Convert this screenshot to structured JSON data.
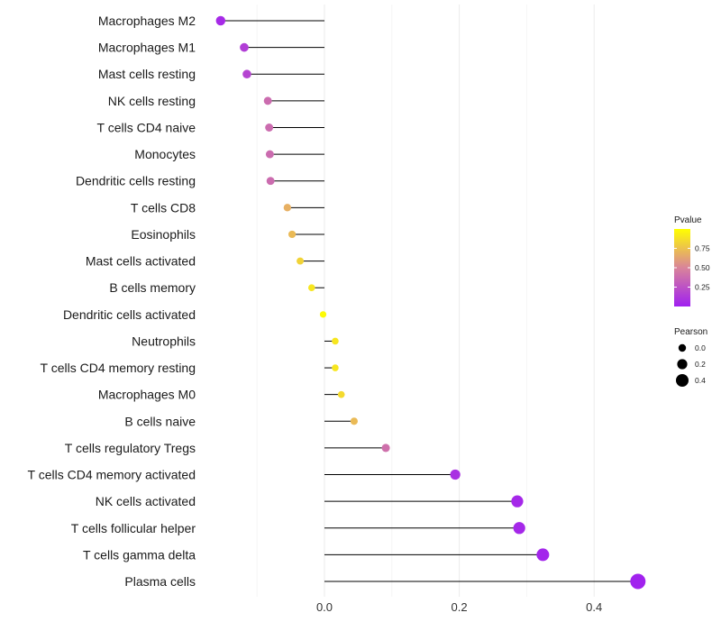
{
  "chart_data": {
    "type": "lollipop",
    "title": "",
    "xlabel": "",
    "ylabel": "",
    "xlim": [
      -0.1,
      0.47
    ],
    "xticks": [
      0.0,
      0.2,
      0.4
    ],
    "xtick_labels": [
      "0.0",
      "0.2",
      "0.4"
    ],
    "categories": [
      "Macrophages M2",
      "Macrophages M1",
      "Mast cells resting",
      "NK cells resting",
      "T cells CD4 naive",
      "Monocytes",
      "Dendritic cells resting",
      "T cells CD8",
      "Eosinophils",
      "Mast cells activated",
      "B cells memory",
      "Dendritic cells activated",
      "Neutrophils",
      "T cells CD4 memory resting",
      "Macrophages M0",
      "B cells naive",
      "T cells regulatory  Tregs",
      "T cells CD4 memory activated",
      "NK cells activated",
      "T cells follicular helper",
      "T cells gamma delta",
      "Plasma cells"
    ],
    "pearson": [
      -0.154,
      -0.119,
      -0.115,
      -0.084,
      -0.082,
      -0.081,
      -0.08,
      -0.055,
      -0.048,
      -0.036,
      -0.019,
      -0.002,
      0.016,
      0.016,
      0.025,
      0.044,
      0.091,
      0.194,
      0.286,
      0.289,
      0.324,
      0.465
    ],
    "pvalue": [
      0.05,
      0.15,
      0.18,
      0.38,
      0.38,
      0.38,
      0.38,
      0.68,
      0.72,
      0.82,
      0.9,
      0.98,
      0.9,
      0.9,
      0.85,
      0.72,
      0.4,
      0.08,
      0.04,
      0.04,
      0.03,
      0.01
    ],
    "color_scale": {
      "low": "#A020F0",
      "mid": "#D9849A",
      "high": "#FFFF00"
    },
    "legend_pvalue": {
      "title": "Pvalue",
      "ticks": [
        0.75,
        0.5,
        0.25
      ],
      "tick_labels": [
        "0.75",
        "0.50",
        "0.25"
      ],
      "range": [
        0.0,
        1.0
      ]
    },
    "legend_pearson": {
      "title": "Pearson",
      "ticks": [
        0.0,
        0.2,
        0.4
      ],
      "tick_labels": [
        "0.0",
        "0.2",
        "0.4"
      ]
    },
    "grid": true,
    "legend_position": "right"
  }
}
